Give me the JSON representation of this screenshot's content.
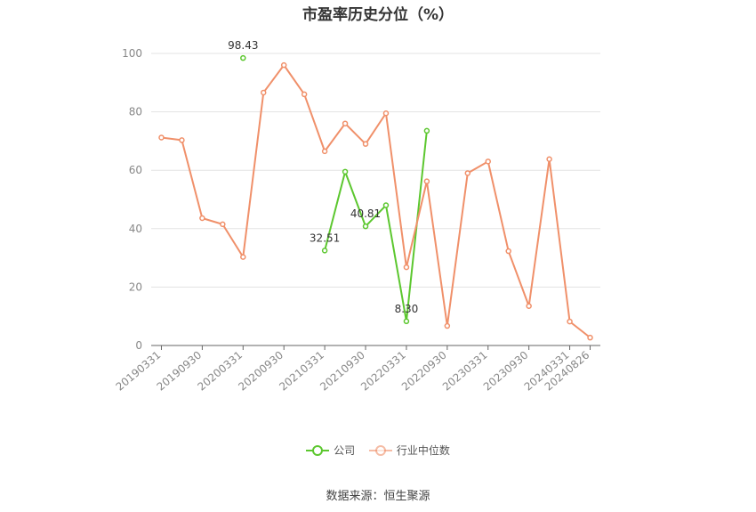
{
  "chart_data": {
    "type": "line",
    "title": "市盈率历史分位（%）",
    "x": [
      "20190331",
      "20190630",
      "20190930",
      "20191231",
      "20200331",
      "20200630",
      "20200930",
      "20201231",
      "20210331",
      "20210630",
      "20210930",
      "20211231",
      "20220331",
      "20220630",
      "20220930",
      "20221231",
      "20230331",
      "20230630",
      "20230930",
      "20231231",
      "20240331",
      "20240826"
    ],
    "x_tick_labels": [
      "20190331",
      "20190930",
      "20200331",
      "20200930",
      "20210331",
      "20210930",
      "20220331",
      "20220930",
      "20230331",
      "20230930",
      "20240331",
      "20240826"
    ],
    "ylim": [
      0,
      100
    ],
    "y_ticks": [
      0,
      20,
      40,
      60,
      80,
      100
    ],
    "grid": true,
    "legend_position": "bottom",
    "series": [
      {
        "name": "公司",
        "color": "#5cc72f",
        "values": [
          null,
          null,
          null,
          null,
          98.43,
          null,
          null,
          null,
          32.51,
          59.5,
          40.81,
          48.0,
          8.3,
          73.5,
          null,
          null,
          null,
          null,
          null,
          null,
          null,
          null
        ]
      },
      {
        "name": "行业中位数",
        "color": "#f0906a",
        "values": [
          71.2,
          70.3,
          43.6,
          41.5,
          30.3,
          86.6,
          96.0,
          86.0,
          66.5,
          76.0,
          69.0,
          79.5,
          26.8,
          56.2,
          6.7,
          59.0,
          63.0,
          32.3,
          13.5,
          63.8,
          8.2,
          2.7
        ]
      }
    ],
    "annotations": [
      {
        "series": 0,
        "index": 4,
        "label": "98.43"
      },
      {
        "series": 0,
        "index": 8,
        "label": "32.51"
      },
      {
        "series": 0,
        "index": 10,
        "label": "40.81"
      },
      {
        "series": 0,
        "index": 12,
        "label": "8.30"
      }
    ]
  },
  "source": "数据来源：恒生聚源"
}
